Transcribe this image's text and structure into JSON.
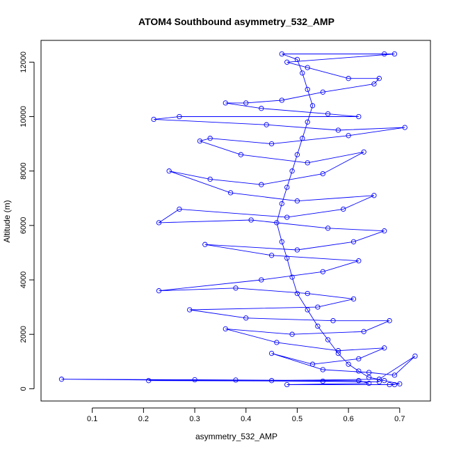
{
  "chart_data": {
    "type": "line",
    "title": "ATOM4 Southbound asymmetry_532_AMP",
    "xlabel": "asymmetry_532_AMP",
    "ylabel": "Altitude (m)",
    "xlim": [
      0.0,
      0.76
    ],
    "ylim": [
      -450,
      12800
    ],
    "x_ticks": [
      "0.1",
      "0.2",
      "0.3",
      "0.4",
      "0.5",
      "0.6",
      "0.7"
    ],
    "y_ticks": [
      "0",
      "2000",
      "4000",
      "6000",
      "8000",
      "10000",
      "12000"
    ],
    "grid": false,
    "marker": "open-circle",
    "series": [
      {
        "name": "",
        "color": "#0000ff",
        "points": [
          [
            0.68,
            150
          ],
          [
            0.7,
            180
          ],
          [
            0.67,
            300
          ],
          [
            0.64,
            420
          ],
          [
            0.62,
            650
          ],
          [
            0.6,
            900
          ],
          [
            0.58,
            1300
          ],
          [
            0.56,
            1800
          ],
          [
            0.54,
            2300
          ],
          [
            0.52,
            2900
          ],
          [
            0.5,
            3500
          ],
          [
            0.49,
            4100
          ],
          [
            0.48,
            4800
          ],
          [
            0.47,
            5400
          ],
          [
            0.46,
            6100
          ],
          [
            0.47,
            6800
          ],
          [
            0.48,
            7400
          ],
          [
            0.49,
            8000
          ],
          [
            0.5,
            8600
          ],
          [
            0.51,
            9200
          ],
          [
            0.52,
            9800
          ],
          [
            0.53,
            10400
          ],
          [
            0.52,
            11000
          ],
          [
            0.51,
            11600
          ],
          [
            0.5,
            12100
          ],
          [
            0.47,
            12300
          ],
          [
            0.67,
            12300
          ],
          [
            0.69,
            12300
          ],
          [
            0.48,
            12000
          ],
          [
            0.52,
            11800
          ],
          [
            0.6,
            11400
          ],
          [
            0.66,
            11400
          ],
          [
            0.65,
            11200
          ],
          [
            0.55,
            10900
          ],
          [
            0.47,
            10600
          ],
          [
            0.4,
            10500
          ],
          [
            0.36,
            10500
          ],
          [
            0.43,
            10300
          ],
          [
            0.56,
            10100
          ],
          [
            0.62,
            10000
          ],
          [
            0.27,
            10000
          ],
          [
            0.22,
            9900
          ],
          [
            0.44,
            9700
          ],
          [
            0.58,
            9500
          ],
          [
            0.71,
            9600
          ],
          [
            0.6,
            9300
          ],
          [
            0.45,
            9000
          ],
          [
            0.33,
            9200
          ],
          [
            0.31,
            9100
          ],
          [
            0.39,
            8600
          ],
          [
            0.52,
            8300
          ],
          [
            0.63,
            8700
          ],
          [
            0.55,
            7900
          ],
          [
            0.43,
            7500
          ],
          [
            0.33,
            7700
          ],
          [
            0.25,
            8000
          ],
          [
            0.37,
            7200
          ],
          [
            0.5,
            6900
          ],
          [
            0.65,
            7100
          ],
          [
            0.59,
            6600
          ],
          [
            0.48,
            6300
          ],
          [
            0.27,
            6600
          ],
          [
            0.23,
            6100
          ],
          [
            0.41,
            6200
          ],
          [
            0.56,
            5900
          ],
          [
            0.67,
            5800
          ],
          [
            0.61,
            5400
          ],
          [
            0.5,
            5100
          ],
          [
            0.32,
            5300
          ],
          [
            0.45,
            4900
          ],
          [
            0.62,
            4700
          ],
          [
            0.55,
            4300
          ],
          [
            0.43,
            4000
          ],
          [
            0.23,
            3600
          ],
          [
            0.38,
            3700
          ],
          [
            0.52,
            3500
          ],
          [
            0.61,
            3300
          ],
          [
            0.54,
            3000
          ],
          [
            0.29,
            2900
          ],
          [
            0.4,
            2600
          ],
          [
            0.57,
            2500
          ],
          [
            0.68,
            2500
          ],
          [
            0.63,
            2100
          ],
          [
            0.49,
            2000
          ],
          [
            0.36,
            2200
          ],
          [
            0.46,
            1700
          ],
          [
            0.58,
            1400
          ],
          [
            0.67,
            1500
          ],
          [
            0.62,
            1100
          ],
          [
            0.53,
            900
          ],
          [
            0.45,
            1300
          ],
          [
            0.55,
            700
          ],
          [
            0.64,
            600
          ],
          [
            0.69,
            500
          ],
          [
            0.73,
            1200
          ],
          [
            0.66,
            350
          ],
          [
            0.45,
            300
          ],
          [
            0.38,
            320
          ],
          [
            0.21,
            300
          ],
          [
            0.55,
            280
          ],
          [
            0.66,
            250
          ],
          [
            0.04,
            350
          ],
          [
            0.3,
            330
          ],
          [
            0.62,
            300
          ],
          [
            0.64,
            200
          ],
          [
            0.48,
            150
          ],
          [
            0.69,
            150
          ]
        ]
      }
    ]
  }
}
